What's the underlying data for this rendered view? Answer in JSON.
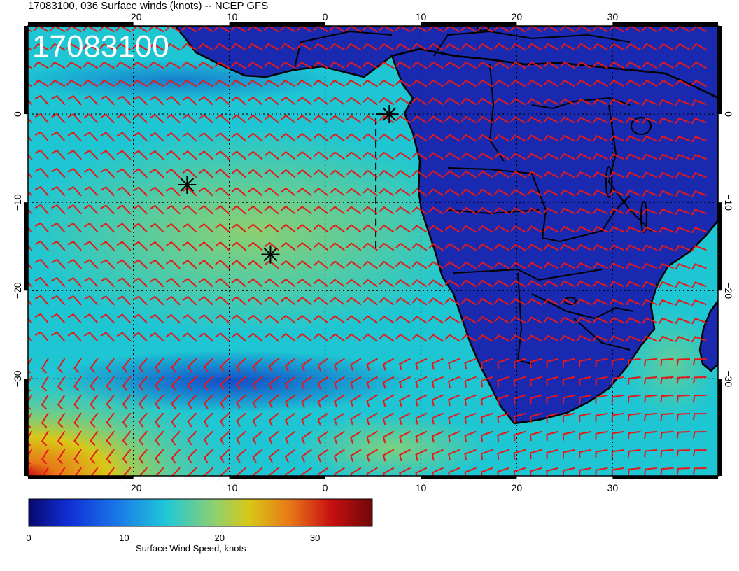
{
  "title": "17083100, 036 Surface winds (knots) -- NCEP GFS",
  "date_stamp": "17083100",
  "colorbar": {
    "label": "Surface Wind Speed, knots",
    "ticks": [
      0,
      10,
      20,
      30
    ],
    "range": [
      0,
      36
    ],
    "colors": [
      "#08086e",
      "#1030d8",
      "#1a78e8",
      "#20c8d8",
      "#8cd070",
      "#d8c818",
      "#e87818",
      "#c81010",
      "#700808"
    ]
  },
  "map": {
    "lon_range": [
      -31,
      41
    ],
    "lat_range": [
      -41,
      10
    ],
    "lon_ticks": [
      -20,
      -10,
      0,
      10,
      20,
      30
    ],
    "lat_ticks": [
      0,
      -10,
      -20,
      -30
    ],
    "lon_tick_labels": [
      "−20",
      "−10",
      "0",
      "10",
      "20",
      "30"
    ],
    "lat_tick_labels": [
      "0",
      "−10",
      "−20",
      "−30"
    ],
    "barb_color": "#e81818",
    "land_color": "#1a2ab0",
    "ocean_color": "#1ec6d4",
    "coast_color": "#000000",
    "markers": [
      {
        "lon": 6.7,
        "lat": 0.0,
        "symbol": "asterisk"
      },
      {
        "lon": -14.4,
        "lat": -8.0,
        "symbol": "asterisk"
      },
      {
        "lon": -5.7,
        "lat": -15.9,
        "symbol": "asterisk"
      }
    ],
    "dashed_track": [
      [
        5.3,
        -15.2
      ],
      [
        5.3,
        0.0
      ],
      [
        6.7,
        0.0
      ]
    ]
  }
}
